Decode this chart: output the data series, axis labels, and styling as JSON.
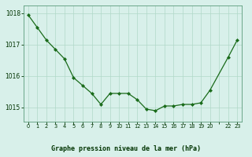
{
  "x": [
    0,
    1,
    2,
    3,
    4,
    5,
    6,
    7,
    8,
    9,
    10,
    11,
    12,
    13,
    14,
    15,
    16,
    17,
    18,
    19,
    20,
    22,
    23
  ],
  "y": [
    1017.95,
    1017.55,
    1017.15,
    1016.85,
    1016.55,
    1015.95,
    1015.7,
    1015.45,
    1015.1,
    1015.45,
    1015.45,
    1015.45,
    1015.25,
    1014.95,
    1014.9,
    1015.05,
    1015.05,
    1015.1,
    1015.1,
    1015.15,
    1015.55,
    1016.6,
    1017.15
  ],
  "ylim": [
    1014.55,
    1018.25
  ],
  "yticks": [
    1015,
    1016,
    1017,
    1018
  ],
  "xtick_labels": [
    "0",
    "1",
    "2",
    "3",
    "4",
    "5",
    "6",
    "7",
    "8",
    "9",
    "10",
    "11",
    "12",
    "13",
    "14",
    "15",
    "16",
    "17",
    "18",
    "19",
    "20",
    "",
    "22",
    "23"
  ],
  "line_color": "#1a6b1a",
  "marker_color": "#1a6b1a",
  "bg_color": "#d8f0ea",
  "grid_color": "#b0d8c8",
  "xlabel": "Graphe pression niveau de la mer (hPa)",
  "xlabel_color": "#003300",
  "tick_label_color": "#003300",
  "spine_color": "#5a9a7a",
  "fig_width": 3.2,
  "fig_height": 2.0,
  "dpi": 100
}
